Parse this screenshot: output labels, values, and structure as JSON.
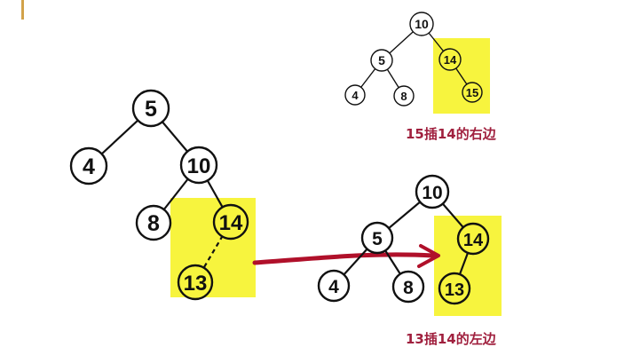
{
  "colors": {
    "highlight": "#f7f43e",
    "node_fill": "#ffffff",
    "highlight_node_fill": "#f7f43e",
    "arrow": "#b0102a",
    "caption": "#a0203e",
    "left_rule": "#d2a24a"
  },
  "diagram_left": {
    "nodes": [
      "5",
      "4",
      "10",
      "8",
      "14",
      "13"
    ]
  },
  "diagram_top_right": {
    "nodes": [
      "10",
      "5",
      "14",
      "4",
      "8",
      "15"
    ],
    "caption": "15插14的右边"
  },
  "diagram_bottom_right": {
    "nodes": [
      "10",
      "5",
      "14",
      "4",
      "8",
      "13"
    ],
    "caption": "13插14的左边"
  }
}
